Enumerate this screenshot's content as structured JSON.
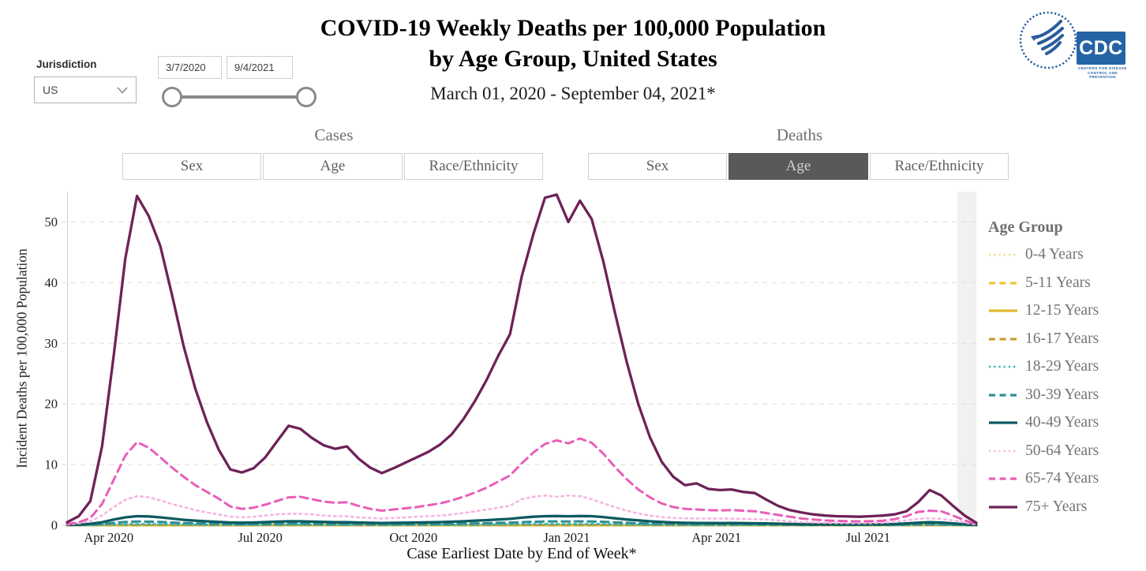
{
  "header": {
    "title_line1": "COVID-19 Weekly Deaths per 100,000 Population",
    "title_line2": "by Age Group, United States",
    "subtitle": "March 01, 2020 - September 04, 2021*"
  },
  "filters": {
    "jurisdiction_label": "Jurisdiction",
    "jurisdiction_value": "US",
    "date_start": "3/7/2020",
    "date_end": "9/4/2021"
  },
  "logos": {
    "cdc_text": "CDC",
    "cdc_tagline_line1": "CENTERS FOR DISEASE",
    "cdc_tagline_line2": "CONTROL AND PREVENTION"
  },
  "tab_groups": [
    {
      "label": "Cases",
      "buttons": [
        {
          "label": "Sex",
          "selected": false
        },
        {
          "label": "Age",
          "selected": false
        },
        {
          "label": "Race/Ethnicity",
          "selected": false
        }
      ]
    },
    {
      "label": "Deaths",
      "buttons": [
        {
          "label": "Sex",
          "selected": false
        },
        {
          "label": "Age",
          "selected": true
        },
        {
          "label": "Race/Ethnicity",
          "selected": false
        }
      ]
    }
  ],
  "chart_data": {
    "type": "line",
    "title": "COVID-19 Weekly Deaths per 100,000 Population by Age Group, United States",
    "xlabel": "Case Earliest Date by End of Week*",
    "ylabel": "Incident Deaths per 100,000 Population",
    "x_start": "2020-03-07",
    "x_end": "2021-09-04",
    "n_weeks": 79,
    "ylim": [
      0,
      55
    ],
    "yticks": [
      0,
      10,
      20,
      30,
      40,
      50
    ],
    "grid": "horizontal-dashed",
    "legend_title": "Age Group",
    "legend_position": "right",
    "provisional_band_start_week": 76.4,
    "x_ticks": [
      {
        "label": "Apr 2020",
        "week": 3.57
      },
      {
        "label": "Jul 2020",
        "week": 16.57
      },
      {
        "label": "Oct 2020",
        "week": 29.71
      },
      {
        "label": "Jan 2021",
        "week": 42.86
      },
      {
        "label": "Apr 2021",
        "week": 55.71
      },
      {
        "label": "Jul 2021",
        "week": 68.71
      }
    ],
    "series": [
      {
        "name": "0-4 Years",
        "color": "#F2DE8C",
        "style": "dotted",
        "flat": 0.01
      },
      {
        "name": "5-11 Years",
        "color": "#E8C840",
        "style": "dashed",
        "flat": 0.015
      },
      {
        "name": "12-15 Years",
        "color": "#E0BB30",
        "style": "solid",
        "flat": 0.03
      },
      {
        "name": "16-17 Years",
        "color": "#C3A02F",
        "style": "dashed",
        "flat": 0.02
      },
      {
        "name": "18-29 Years",
        "color": "#35B4B4",
        "style": "dotted",
        "values": [
          0.01,
          0.02,
          0.04,
          0.08,
          0.13,
          0.18,
          0.2,
          0.19,
          0.17,
          0.15,
          0.12,
          0.1,
          0.09,
          0.08,
          0.07,
          0.06,
          0.07,
          0.08,
          0.09,
          0.1,
          0.1,
          0.09,
          0.08,
          0.07,
          0.07,
          0.06,
          0.06,
          0.05,
          0.06,
          0.06,
          0.06,
          0.07,
          0.07,
          0.08,
          0.09,
          0.1,
          0.12,
          0.13,
          0.15,
          0.18,
          0.2,
          0.21,
          0.21,
          0.2,
          0.21,
          0.21,
          0.19,
          0.16,
          0.13,
          0.11,
          0.09,
          0.08,
          0.07,
          0.06,
          0.05,
          0.05,
          0.05,
          0.05,
          0.05,
          0.05,
          0.04,
          0.04,
          0.04,
          0.03,
          0.03,
          0.02,
          0.02,
          0.02,
          0.02,
          0.02,
          0.02,
          0.03,
          0.04,
          0.06,
          0.07,
          0.06,
          0.04,
          0.02,
          0.01
        ]
      },
      {
        "name": "30-39 Years",
        "color": "#2E8E96",
        "style": "dashed",
        "values": [
          0.02,
          0.05,
          0.1,
          0.22,
          0.4,
          0.55,
          0.62,
          0.6,
          0.54,
          0.46,
          0.38,
          0.32,
          0.27,
          0.23,
          0.19,
          0.18,
          0.19,
          0.22,
          0.25,
          0.28,
          0.28,
          0.26,
          0.23,
          0.21,
          0.21,
          0.19,
          0.17,
          0.16,
          0.17,
          0.18,
          0.19,
          0.2,
          0.22,
          0.24,
          0.27,
          0.31,
          0.35,
          0.4,
          0.44,
          0.52,
          0.58,
          0.62,
          0.64,
          0.62,
          0.64,
          0.63,
          0.57,
          0.48,
          0.4,
          0.33,
          0.27,
          0.23,
          0.2,
          0.18,
          0.16,
          0.15,
          0.15,
          0.15,
          0.15,
          0.14,
          0.13,
          0.12,
          0.1,
          0.08,
          0.07,
          0.06,
          0.06,
          0.06,
          0.06,
          0.06,
          0.07,
          0.09,
          0.13,
          0.18,
          0.2,
          0.18,
          0.12,
          0.06,
          0.02
        ]
      },
      {
        "name": "40-49 Years",
        "color": "#0C5A60",
        "style": "solid",
        "values": [
          0.05,
          0.1,
          0.25,
          0.5,
          0.95,
          1.3,
          1.5,
          1.45,
          1.3,
          1.1,
          0.9,
          0.75,
          0.65,
          0.55,
          0.45,
          0.42,
          0.45,
          0.52,
          0.6,
          0.65,
          0.65,
          0.6,
          0.55,
          0.5,
          0.5,
          0.45,
          0.4,
          0.38,
          0.4,
          0.42,
          0.45,
          0.48,
          0.52,
          0.58,
          0.65,
          0.75,
          0.85,
          0.95,
          1.05,
          1.25,
          1.4,
          1.5,
          1.52,
          1.48,
          1.52,
          1.5,
          1.35,
          1.15,
          0.95,
          0.8,
          0.65,
          0.55,
          0.46,
          0.4,
          0.38,
          0.36,
          0.35,
          0.36,
          0.35,
          0.33,
          0.3,
          0.26,
          0.21,
          0.17,
          0.15,
          0.14,
          0.13,
          0.13,
          0.13,
          0.14,
          0.16,
          0.2,
          0.3,
          0.42,
          0.5,
          0.45,
          0.3,
          0.15,
          0.04
        ]
      },
      {
        "name": "50-64 Years",
        "color": "#F8B4DE",
        "style": "dotted",
        "values": [
          0.1,
          0.3,
          0.7,
          1.6,
          3,
          4.2,
          4.8,
          4.6,
          4.1,
          3.5,
          3,
          2.5,
          2.1,
          1.8,
          1.4,
          1.3,
          1.4,
          1.6,
          1.8,
          1.9,
          1.9,
          1.8,
          1.6,
          1.5,
          1.5,
          1.3,
          1.2,
          1.1,
          1.2,
          1.3,
          1.4,
          1.5,
          1.6,
          1.8,
          2,
          2.3,
          2.6,
          2.9,
          3.2,
          4.3,
          4.7,
          4.9,
          4.7,
          4.9,
          4.8,
          4.3,
          3.6,
          3,
          2.4,
          1.95,
          1.6,
          1.35,
          1.2,
          1.15,
          1.1,
          1.1,
          1.12,
          1.08,
          1.05,
          1,
          0.95,
          0.8,
          0.65,
          0.52,
          0.45,
          0.4,
          0.37,
          0.35,
          0.34,
          0.35,
          0.42,
          0.55,
          0.8,
          1.05,
          1.15,
          1.05,
          0.8,
          0.45,
          0.1
        ]
      },
      {
        "name": "65-74 Years",
        "color": "#E95EB8",
        "style": "dashed",
        "values": [
          0.2,
          0.5,
          1.2,
          3.5,
          7.5,
          11.5,
          13.7,
          12.8,
          11.2,
          9.5,
          8,
          6.6,
          5.5,
          4.4,
          3.1,
          2.7,
          2.9,
          3.4,
          4,
          4.6,
          4.7,
          4.3,
          3.9,
          3.7,
          3.8,
          3.2,
          2.7,
          2.4,
          2.6,
          2.8,
          3,
          3.3,
          3.6,
          4.1,
          4.7,
          5.4,
          6.2,
          7.2,
          8.2,
          10.2,
          12,
          13.4,
          14,
          13.5,
          14.3,
          13.6,
          11.8,
          9.6,
          7.6,
          5.9,
          4.6,
          3.6,
          3,
          2.7,
          2.6,
          2.5,
          2.45,
          2.5,
          2.4,
          2.3,
          2,
          1.7,
          1.4,
          1.1,
          0.95,
          0.8,
          0.72,
          0.68,
          0.65,
          0.68,
          0.75,
          1,
          1.5,
          2.2,
          2.4,
          2.3,
          1.6,
          0.8,
          0.15
        ]
      },
      {
        "name": "75+ Years",
        "color": "#6E2258",
        "style": "solid",
        "values": [
          0.5,
          1.5,
          4,
          13,
          28,
          44,
          54.3,
          51,
          46,
          38,
          29.5,
          22.5,
          17,
          12.5,
          9.2,
          8.7,
          9.4,
          11.2,
          13.8,
          16.4,
          15.9,
          14.4,
          13.2,
          12.6,
          13,
          11,
          9.5,
          8.6,
          9.4,
          10.3,
          11.2,
          12.1,
          13.3,
          15,
          17.5,
          20.5,
          24,
          28,
          31.5,
          41,
          48,
          54,
          54.5,
          50,
          53.5,
          50.5,
          43.5,
          35,
          27,
          20,
          14.5,
          10.5,
          8,
          6.6,
          6.9,
          6,
          5.8,
          5.9,
          5.5,
          5.3,
          4.2,
          3.2,
          2.5,
          2.1,
          1.8,
          1.6,
          1.5,
          1.45,
          1.4,
          1.5,
          1.6,
          1.8,
          2.3,
          3.8,
          5.8,
          4.9,
          3.2,
          1.6,
          0.4
        ]
      }
    ]
  }
}
